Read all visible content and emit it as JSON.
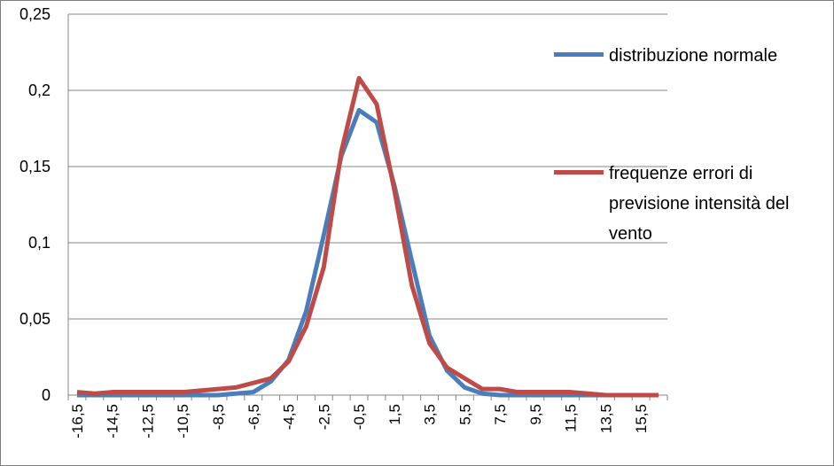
{
  "chart_data": {
    "type": "line",
    "categories": [
      "-16,5",
      null,
      "-14,5",
      null,
      "-12,5",
      null,
      "-10,5",
      null,
      "-8,5",
      null,
      "-6,5",
      null,
      "-4,5",
      null,
      "-2,5",
      null,
      "-0,5",
      null,
      "1,5",
      null,
      "3,5",
      null,
      "5,5",
      null,
      "7,5",
      null,
      "9,5",
      null,
      "11,5",
      null,
      "13,5",
      null,
      "15,5",
      null
    ],
    "series": [
      {
        "name": "distribuzione normale",
        "color": "#4a7ebb",
        "values": [
          0,
          0,
          0,
          0,
          0,
          0,
          0,
          0,
          0,
          0.001,
          0.002,
          0.009,
          0.023,
          0.055,
          0.105,
          0.157,
          0.187,
          0.179,
          0.138,
          0.088,
          0.039,
          0.016,
          0.005,
          0.001,
          0,
          0,
          0,
          0,
          0,
          0,
          0,
          0,
          0,
          0
        ]
      },
      {
        "name": "frequenze errori di previsione intensità del vento",
        "color": "#be4b48",
        "values": [
          0.002,
          0.001,
          0.002,
          0.002,
          0.002,
          0.002,
          0.002,
          0.003,
          0.004,
          0.005,
          0.008,
          0.011,
          0.022,
          0.045,
          0.084,
          0.16,
          0.208,
          0.191,
          0.135,
          0.072,
          0.034,
          0.018,
          0.011,
          0.004,
          0.004,
          0.002,
          0.002,
          0.002,
          0.002,
          0.001,
          0,
          0,
          0,
          0
        ]
      }
    ],
    "ylim": [
      0,
      0.25
    ],
    "yticks": [
      0,
      {
        "value": 0.05,
        "label": "0,05"
      },
      {
        "value": 0.1,
        "label": "0,1"
      },
      {
        "value": 0.15,
        "label": "0,15"
      },
      {
        "value": 0.2,
        "label": "0,2"
      },
      {
        "value": 0.25,
        "label": "0,25"
      }
    ],
    "grid": true,
    "legend": "right"
  }
}
